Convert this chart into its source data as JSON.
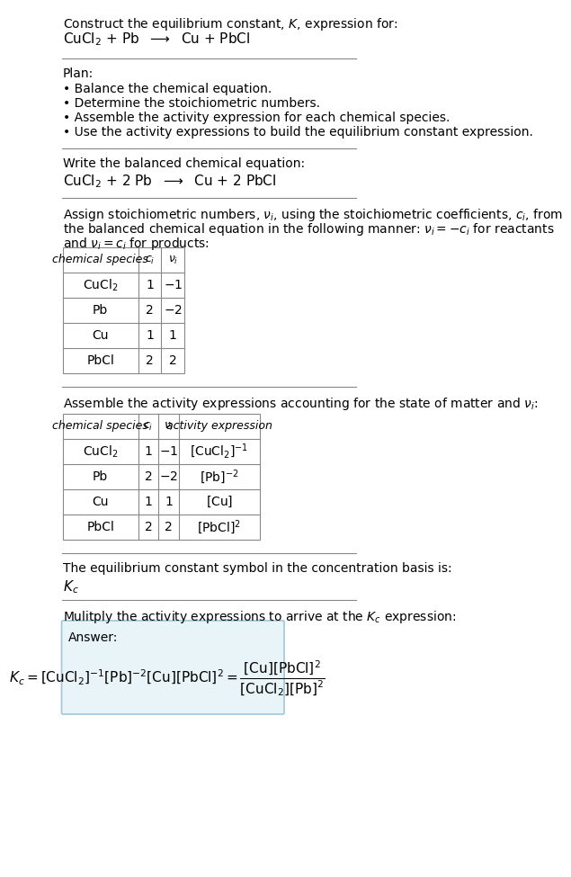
{
  "bg_color": "#ffffff",
  "answer_box_color": "#e8f4f8",
  "answer_box_edge": "#a0c8d8",
  "text_color": "#000000",
  "font_size": 10,
  "title_line1": "Construct the equilibrium constant, $K$, expression for:",
  "title_line2": "CuCl$_2$ + Pb  $\\longrightarrow$  Cu + PbCl",
  "plan_header": "Plan:",
  "plan_items": [
    "\\textbf{\\textbullet} Balance the chemical equation.",
    "\\textbf{\\textbullet} Determine the stoichiometric numbers.",
    "\\textbf{\\textbullet} Assemble the activity expression for each chemical species.",
    "\\textbf{\\textbullet} Use the activity expressions to build the equilibrium constant expression."
  ],
  "balanced_header": "Write the balanced chemical equation:",
  "balanced_eq": "CuCl$_2$ + 2 Pb  $\\longrightarrow$  Cu + 2 PbCl",
  "stoich_intro": "Assign stoichiometric numbers, $\\nu_i$, using the stoichiometric coefficients, $c_i$, from\nthe balanced chemical equation in the following manner: $\\nu_i = -c_i$ for reactants\nand $\\nu_i = c_i$ for products:",
  "table1_headers": [
    "chemical species",
    "$c_i$",
    "$\\nu_i$"
  ],
  "table1_rows": [
    [
      "CuCl$_2$",
      "1",
      "$-1$"
    ],
    [
      "Pb",
      "2",
      "$-2$"
    ],
    [
      "Cu",
      "1",
      "1"
    ],
    [
      "PbCl",
      "2",
      "2"
    ]
  ],
  "activity_intro": "Assemble the activity expressions accounting for the state of matter and $\\nu_i$:",
  "table2_headers": [
    "chemical species",
    "$c_i$",
    "$\\nu_i$",
    "activity expression"
  ],
  "table2_rows": [
    [
      "CuCl$_2$",
      "1",
      "$-1$",
      "$[\\mathrm{CuCl_2}]^{-1}$"
    ],
    [
      "Pb",
      "2",
      "$-2$",
      "$[\\mathrm{Pb}]^{-2}$"
    ],
    [
      "Cu",
      "1",
      "1",
      "$[\\mathrm{Cu}]$"
    ],
    [
      "PbCl",
      "2",
      "2",
      "$[\\mathrm{PbCl}]^2$"
    ]
  ],
  "kc_intro": "The equilibrium constant symbol in the concentration basis is:",
  "kc_symbol": "$K_c$",
  "multiply_intro": "Mulitply the activity expressions to arrive at the $K_c$ expression:",
  "answer_label": "Answer:",
  "answer_eq_line1": "$K_c = [\\mathrm{CuCl_2}]^{-1}\\,[\\mathrm{Pb}]^{-2}\\,[\\mathrm{Cu}]\\,[\\mathrm{PbCl}]^2 = \\dfrac{[\\mathrm{Cu}]\\,[\\mathrm{PbCl}]^2}{[\\mathrm{CuCl_2}]\\,[\\mathrm{Pb}]^2}$"
}
